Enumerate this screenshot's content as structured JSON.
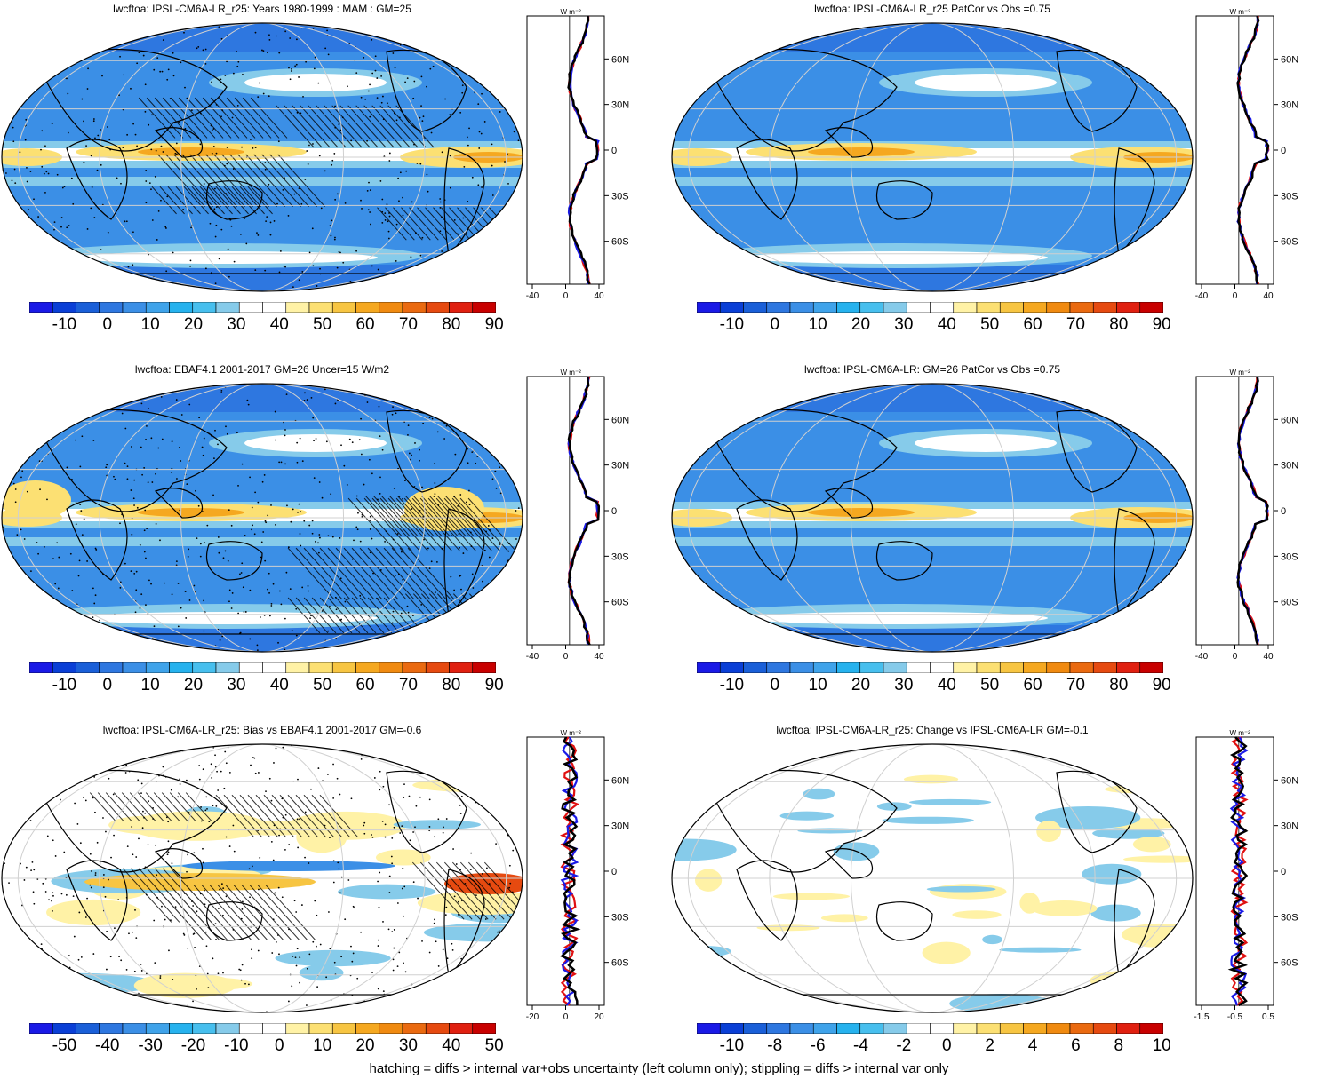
{
  "footer": "hatching = diffs > internal var+obs uncertainty (left column only); stippling = diffs > internal var only",
  "profile_unit": "W m⁻²",
  "lat_labels": [
    "60N",
    "30N",
    "0",
    "30S",
    "60S"
  ],
  "colors": {
    "full": [
      "#1a1ae6",
      "#0a3fd6",
      "#1a5fd8",
      "#2e77e0",
      "#3b8fe6",
      "#3fa3ea",
      "#26b2ee",
      "#47bfee",
      "#86cbea",
      "#ffffff",
      "#ffffff",
      "#fff2a6",
      "#fce073",
      "#f7c542",
      "#f5a820",
      "#f08a10",
      "#ea6a10",
      "#e64a10",
      "#e02010",
      "#c80000"
    ],
    "lines": {
      "obs": "#e01010",
      "model": "#1a1ae6",
      "mean": "#000000"
    }
  },
  "panels": [
    {
      "title": "lwcftoa: IPSL-CM6A-LR_r25: Years 1980-1999 : MAM : GM=25",
      "colorbar_labels": [
        "-10",
        "0",
        "10",
        "20",
        "30",
        "40",
        "50",
        "60",
        "70",
        "80",
        "90"
      ],
      "profile_xticks": [
        "-40",
        "0",
        "40"
      ],
      "style": "abs",
      "hatch": true,
      "stipple": true
    },
    {
      "title": "lwcftoa: IPSL-CM6A-LR_r25 PatCor vs Obs =0.75",
      "colorbar_labels": [
        "-10",
        "0",
        "10",
        "20",
        "30",
        "40",
        "50",
        "60",
        "70",
        "80",
        "90"
      ],
      "profile_xticks": [
        "-40",
        "0",
        "40"
      ],
      "style": "abs",
      "hatch": false,
      "stipple": false
    },
    {
      "title": "lwcftoa: EBAF4.1 2001-2017 GM=26 Uncer=15 W/m2",
      "colorbar_labels": [
        "-10",
        "0",
        "10",
        "20",
        "30",
        "40",
        "50",
        "60",
        "70",
        "80",
        "90"
      ],
      "profile_xticks": [
        "-40",
        "0",
        "40"
      ],
      "style": "abs2",
      "hatch": true,
      "stipple": true
    },
    {
      "title": "lwcftoa: IPSL-CM6A-LR: GM=26 PatCor vs Obs =0.75",
      "colorbar_labels": [
        "-10",
        "0",
        "10",
        "20",
        "30",
        "40",
        "50",
        "60",
        "70",
        "80",
        "90"
      ],
      "profile_xticks": [
        "-40",
        "0",
        "40"
      ],
      "style": "abs",
      "hatch": false,
      "stipple": false
    },
    {
      "title": "lwcftoa: IPSL-CM6A-LR_r25: Bias vs EBAF4.1 2001-2017 GM=-0.6",
      "colorbar_labels": [
        "-50",
        "-40",
        "-30",
        "-20",
        "-10",
        "0",
        "10",
        "20",
        "30",
        "40",
        "50"
      ],
      "profile_xticks": [
        "-20",
        "0",
        "20"
      ],
      "style": "diff",
      "hatch": true,
      "stipple": true
    },
    {
      "title": "lwcftoa: IPSL-CM6A-LR_r25: Change vs IPSL-CM6A-LR GM=-0.1",
      "colorbar_labels": [
        "-10",
        "-8",
        "-6",
        "-4",
        "-2",
        "0",
        "2",
        "4",
        "6",
        "8",
        "10"
      ],
      "profile_xticks": [
        "-1.5",
        "-0.5",
        "0.5"
      ],
      "style": "diff2",
      "hatch": false,
      "stipple": false
    }
  ]
}
